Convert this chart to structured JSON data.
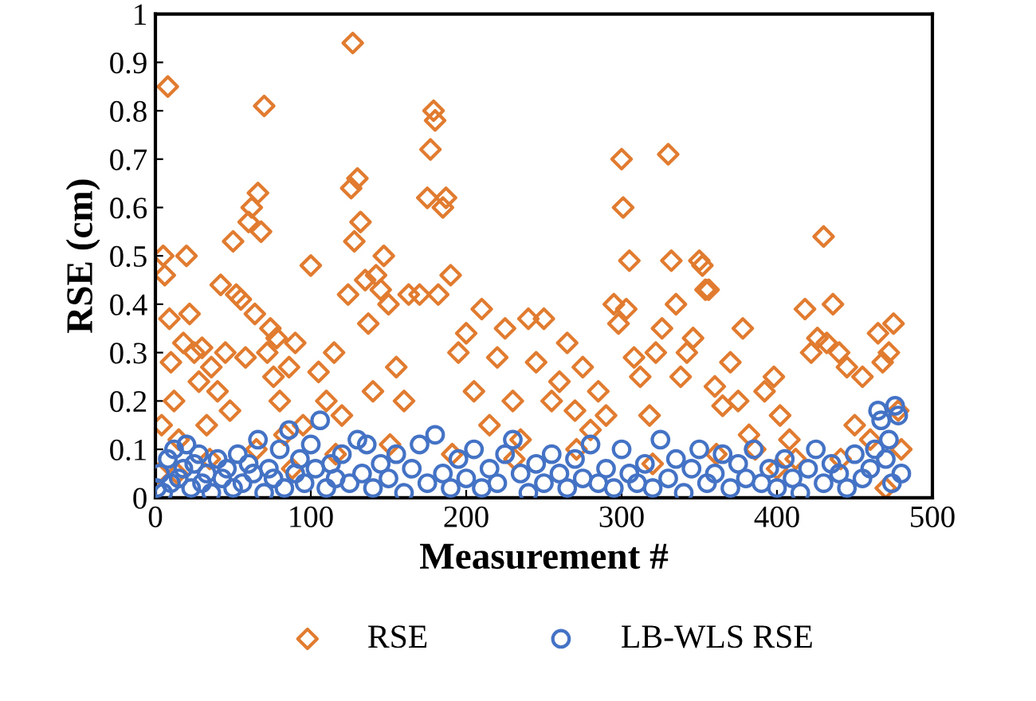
{
  "chart_data": {
    "type": "scatter",
    "xlabel": "Measurement #",
    "ylabel": "RSE (cm)",
    "xlim": [
      0,
      500
    ],
    "ylim": [
      0,
      1
    ],
    "xticks": [
      0,
      100,
      200,
      300,
      400,
      500
    ],
    "yticks": [
      0,
      0.1,
      0.2,
      0.3,
      0.4,
      0.5,
      0.6,
      0.7,
      0.8,
      0.9,
      1
    ],
    "grid": false,
    "legend": "bottom",
    "series": [
      {
        "name": "RSE",
        "color": "#e07b2f",
        "marker": "diamond",
        "x": [
          2,
          4,
          5,
          6,
          8,
          9,
          10,
          12,
          14,
          15,
          18,
          20,
          22,
          25,
          28,
          30,
          33,
          35,
          36,
          40,
          42,
          45,
          48,
          50,
          52,
          55,
          58,
          60,
          62,
          64,
          65,
          66,
          68,
          70,
          72,
          74,
          76,
          78,
          80,
          83,
          86,
          88,
          90,
          95,
          100,
          105,
          110,
          115,
          116,
          120,
          124,
          126,
          127,
          128,
          130,
          132,
          135,
          137,
          140,
          142,
          145,
          147,
          150,
          151,
          155,
          160,
          163,
          170,
          175,
          177,
          179,
          180,
          182,
          185,
          187,
          190,
          191,
          195,
          200,
          205,
          210,
          215,
          220,
          225,
          230,
          231,
          235,
          240,
          245,
          250,
          255,
          260,
          265,
          270,
          271,
          275,
          280,
          285,
          290,
          295,
          298,
          300,
          301,
          303,
          305,
          308,
          312,
          318,
          320,
          322,
          326,
          330,
          332,
          335,
          338,
          342,
          346,
          350,
          352,
          354,
          356,
          360,
          361,
          365,
          370,
          375,
          378,
          382,
          386,
          392,
          398,
          400,
          402,
          408,
          412,
          418,
          422,
          426,
          430,
          432,
          436,
          440,
          441,
          445,
          450,
          455,
          460,
          465,
          468,
          470,
          472,
          475,
          478,
          480
        ],
        "values": [
          0.05,
          0.15,
          0.5,
          0.46,
          0.85,
          0.37,
          0.28,
          0.2,
          0.05,
          0.12,
          0.32,
          0.5,
          0.38,
          0.3,
          0.24,
          0.31,
          0.15,
          0.08,
          0.27,
          0.22,
          0.44,
          0.3,
          0.18,
          0.53,
          0.42,
          0.41,
          0.29,
          0.57,
          0.6,
          0.38,
          0.1,
          0.63,
          0.55,
          0.81,
          0.3,
          0.35,
          0.25,
          0.33,
          0.2,
          0.13,
          0.27,
          0.06,
          0.32,
          0.15,
          0.48,
          0.26,
          0.2,
          0.3,
          0.09,
          0.17,
          0.42,
          0.64,
          0.94,
          0.53,
          0.66,
          0.57,
          0.45,
          0.36,
          0.22,
          0.46,
          0.43,
          0.5,
          0.4,
          0.11,
          0.27,
          0.2,
          0.42,
          0.42,
          0.62,
          0.72,
          0.8,
          0.78,
          0.42,
          0.6,
          0.62,
          0.46,
          0.09,
          0.3,
          0.34,
          0.22,
          0.39,
          0.15,
          0.29,
          0.35,
          0.2,
          0.08,
          0.12,
          0.37,
          0.28,
          0.37,
          0.2,
          0.24,
          0.32,
          0.18,
          0.1,
          0.27,
          0.14,
          0.22,
          0.17,
          0.4,
          0.36,
          0.7,
          0.6,
          0.39,
          0.49,
          0.29,
          0.25,
          0.17,
          0.07,
          0.3,
          0.35,
          0.71,
          0.49,
          0.4,
          0.25,
          0.3,
          0.33,
          0.49,
          0.48,
          0.43,
          0.43,
          0.23,
          0.09,
          0.19,
          0.28,
          0.2,
          0.35,
          0.13,
          0.1,
          0.22,
          0.25,
          0.06,
          0.17,
          0.12,
          0.08,
          0.39,
          0.3,
          0.33,
          0.54,
          0.32,
          0.4,
          0.3,
          0.08,
          0.27,
          0.15,
          0.25,
          0.12,
          0.34,
          0.28,
          0.02,
          0.3,
          0.36,
          0.18,
          0.1
        ]
      },
      {
        "name": "LB-WLS RSE",
        "color": "#4472c4",
        "marker": "circle",
        "x": [
          1,
          3,
          5,
          8,
          10,
          12,
          15,
          18,
          20,
          23,
          25,
          28,
          30,
          33,
          36,
          40,
          43,
          46,
          50,
          53,
          56,
          60,
          63,
          66,
          70,
          73,
          76,
          80,
          83,
          86,
          90,
          93,
          96,
          100,
          103,
          106,
          110,
          113,
          116,
          120,
          125,
          130,
          133,
          136,
          140,
          145,
          150,
          155,
          160,
          165,
          170,
          175,
          180,
          185,
          190,
          195,
          200,
          205,
          210,
          215,
          220,
          225,
          230,
          235,
          240,
          245,
          250,
          255,
          260,
          265,
          270,
          275,
          280,
          285,
          290,
          295,
          300,
          305,
          310,
          315,
          320,
          325,
          330,
          335,
          340,
          345,
          350,
          355,
          360,
          365,
          370,
          375,
          380,
          385,
          390,
          395,
          400,
          405,
          410,
          415,
          420,
          425,
          430,
          435,
          440,
          445,
          450,
          455,
          460,
          463,
          465,
          467,
          470,
          472,
          474,
          476,
          478,
          480
        ],
        "values": [
          0.02,
          0.05,
          0.01,
          0.08,
          0.03,
          0.1,
          0.04,
          0.06,
          0.11,
          0.02,
          0.07,
          0.09,
          0.03,
          0.05,
          0.01,
          0.08,
          0.04,
          0.06,
          0.02,
          0.09,
          0.03,
          0.07,
          0.05,
          0.12,
          0.01,
          0.06,
          0.04,
          0.1,
          0.02,
          0.14,
          0.05,
          0.08,
          0.03,
          0.11,
          0.06,
          0.16,
          0.02,
          0.07,
          0.04,
          0.09,
          0.03,
          0.12,
          0.05,
          0.11,
          0.02,
          0.07,
          0.04,
          0.09,
          0.01,
          0.06,
          0.11,
          0.03,
          0.13,
          0.05,
          0.02,
          0.08,
          0.04,
          0.1,
          0.02,
          0.06,
          0.03,
          0.09,
          0.12,
          0.05,
          0.01,
          0.07,
          0.03,
          0.09,
          0.05,
          0.02,
          0.08,
          0.04,
          0.11,
          0.03,
          0.06,
          0.02,
          0.1,
          0.05,
          0.03,
          0.07,
          0.02,
          0.12,
          0.04,
          0.08,
          0.01,
          0.06,
          0.1,
          0.03,
          0.05,
          0.09,
          0.02,
          0.07,
          0.04,
          0.1,
          0.03,
          0.06,
          0.02,
          0.08,
          0.04,
          0.01,
          0.06,
          0.1,
          0.03,
          0.07,
          0.05,
          0.02,
          0.09,
          0.04,
          0.06,
          0.1,
          0.18,
          0.16,
          0.08,
          0.12,
          0.03,
          0.19,
          0.17,
          0.05
        ]
      }
    ]
  }
}
